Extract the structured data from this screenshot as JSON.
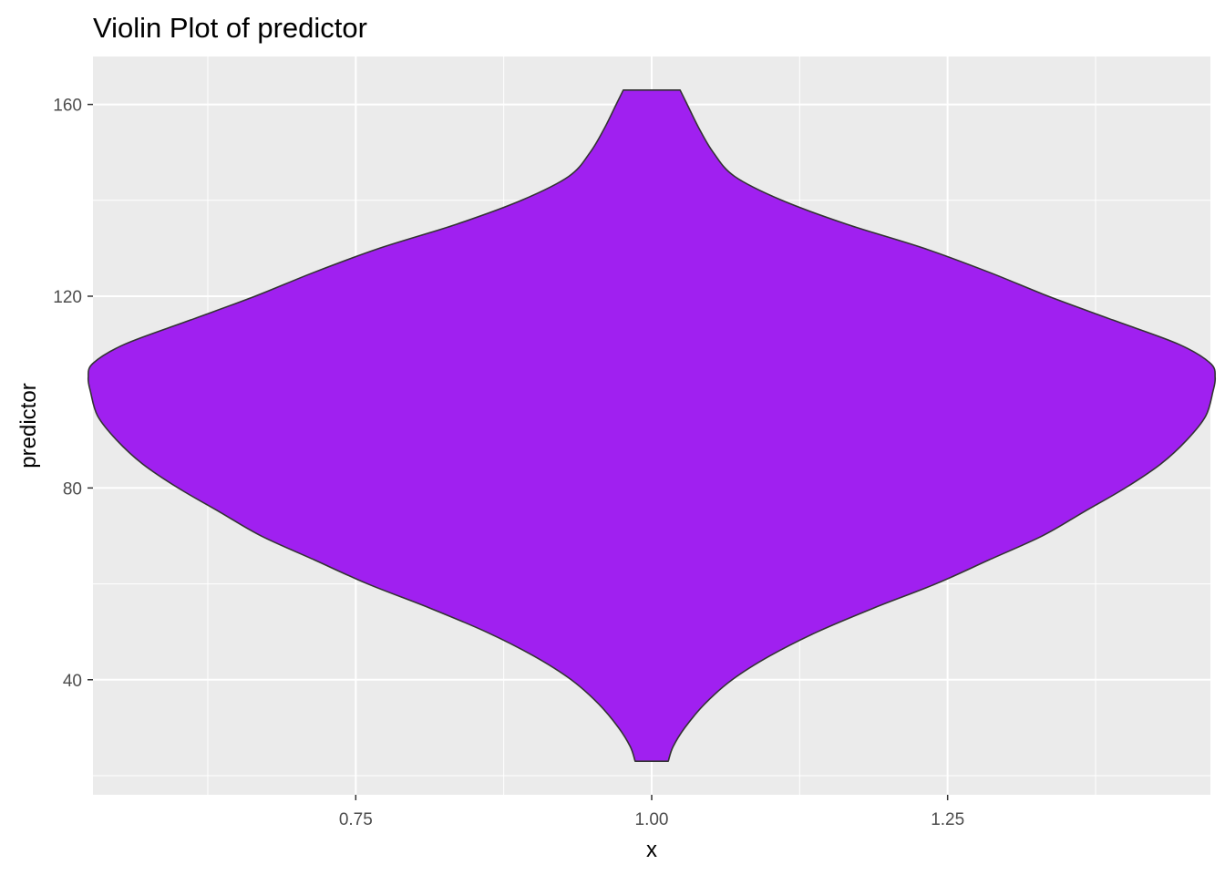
{
  "chart_data": {
    "type": "violin",
    "title": "Violin Plot of predictor",
    "xlabel": "x",
    "ylabel": "predictor",
    "xlim": [
      0.528,
      1.472
    ],
    "ylim": [
      16,
      170
    ],
    "x_ticks": [
      0.75,
      1.0,
      1.25
    ],
    "x_tick_labels": [
      "0.75",
      "1.00",
      "1.25"
    ],
    "y_ticks": [
      40,
      80,
      120,
      160
    ],
    "y_tick_labels": [
      "40",
      "80",
      "120",
      "160"
    ],
    "grid": true,
    "panel_background": "#EBEBEB",
    "grid_color": "#FFFFFF",
    "series": [
      {
        "center_x": 1.0,
        "fill": "#A020F0",
        "outline": "#333333",
        "y_min": 23,
        "y_max": 163,
        "density_profile": [
          {
            "y": 23,
            "half_width": 0.014
          },
          {
            "y": 26,
            "half_width": 0.018
          },
          {
            "y": 30,
            "half_width": 0.028
          },
          {
            "y": 35,
            "half_width": 0.045
          },
          {
            "y": 40,
            "half_width": 0.068
          },
          {
            "y": 45,
            "half_width": 0.1
          },
          {
            "y": 50,
            "half_width": 0.14
          },
          {
            "y": 55,
            "half_width": 0.188
          },
          {
            "y": 60,
            "half_width": 0.24
          },
          {
            "y": 65,
            "half_width": 0.285
          },
          {
            "y": 70,
            "half_width": 0.33
          },
          {
            "y": 75,
            "half_width": 0.365
          },
          {
            "y": 80,
            "half_width": 0.4
          },
          {
            "y": 85,
            "half_width": 0.43
          },
          {
            "y": 90,
            "half_width": 0.452
          },
          {
            "y": 95,
            "half_width": 0.468
          },
          {
            "y": 100,
            "half_width": 0.474
          },
          {
            "y": 103,
            "half_width": 0.476
          },
          {
            "y": 106,
            "half_width": 0.472
          },
          {
            "y": 110,
            "half_width": 0.445
          },
          {
            "y": 115,
            "half_width": 0.39
          },
          {
            "y": 120,
            "half_width": 0.335
          },
          {
            "y": 125,
            "half_width": 0.285
          },
          {
            "y": 130,
            "half_width": 0.23
          },
          {
            "y": 135,
            "half_width": 0.165
          },
          {
            "y": 140,
            "half_width": 0.11
          },
          {
            "y": 145,
            "half_width": 0.07
          },
          {
            "y": 150,
            "half_width": 0.052
          },
          {
            "y": 155,
            "half_width": 0.04
          },
          {
            "y": 160,
            "half_width": 0.03
          },
          {
            "y": 163,
            "half_width": 0.024
          }
        ]
      }
    ]
  }
}
